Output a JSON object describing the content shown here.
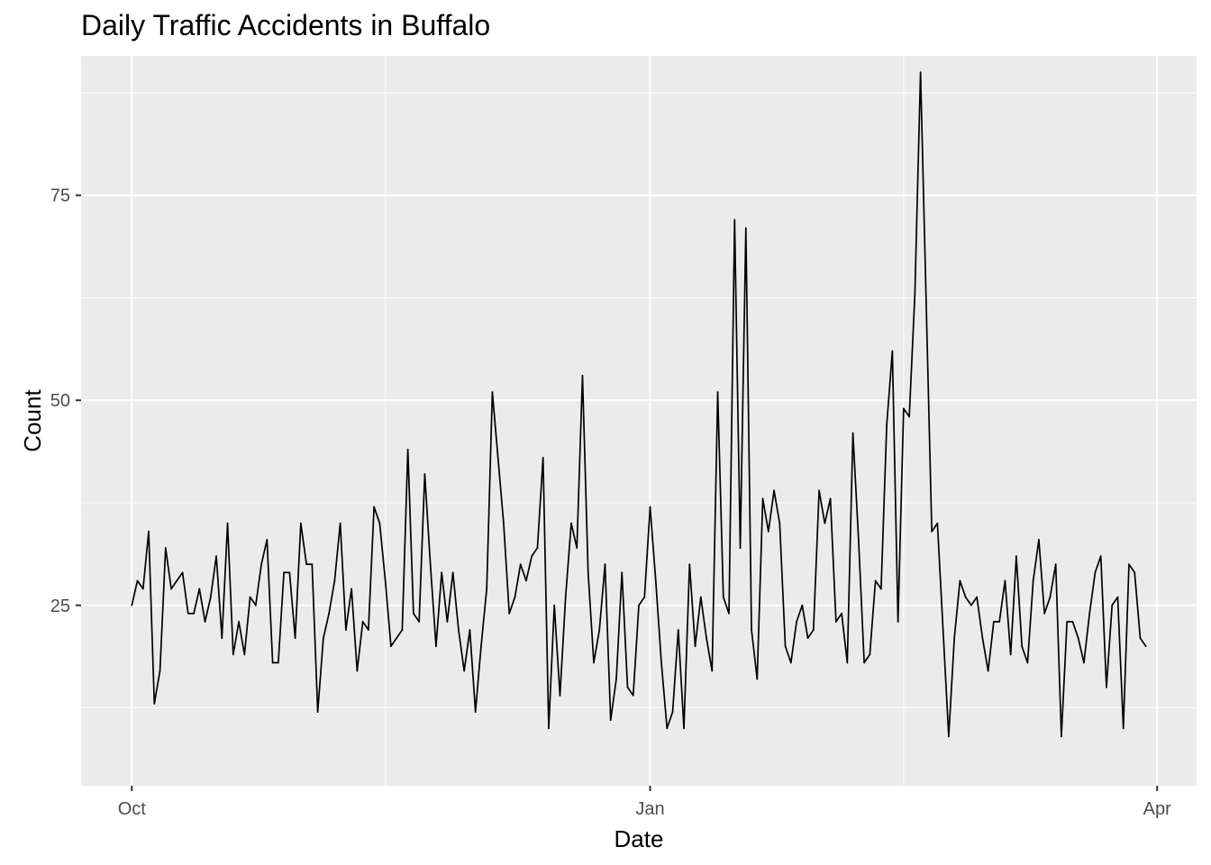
{
  "chart_data": {
    "type": "line",
    "title": "Daily Traffic Accidents in Buffalo",
    "xlabel": "Date",
    "ylabel": "Count",
    "grid": true,
    "x_start": "2014-10-01",
    "x_end": "2015-03-29",
    "xlim": [
      "2014-09-22",
      "2015-04-08"
    ],
    "ylim": [
      3,
      92
    ],
    "x_ticks": [
      {
        "date": "2014-10-01",
        "label": "Oct"
      },
      {
        "date": "2015-01-01",
        "label": "Jan"
      },
      {
        "date": "2015-04-01",
        "label": "Apr"
      }
    ],
    "x_minor_ticks": [
      "2014-11-15",
      "2015-02-15"
    ],
    "y_ticks": [
      25,
      50,
      75
    ],
    "y_minor_ticks": [
      12.5,
      37.5,
      62.5,
      87.5
    ],
    "series": [
      {
        "color": "#000000",
        "values": [
          25,
          28,
          27,
          34,
          13,
          17,
          32,
          27,
          28,
          29,
          24,
          24,
          27,
          23,
          26,
          31,
          21,
          35,
          19,
          23,
          19,
          26,
          25,
          30,
          33,
          18,
          18,
          29,
          29,
          21,
          35,
          30,
          30,
          12,
          21,
          24,
          28,
          35,
          22,
          27,
          17,
          23,
          22,
          37,
          35,
          28,
          20,
          21,
          22,
          44,
          24,
          23,
          41,
          30,
          20,
          29,
          23,
          29,
          22,
          17,
          22,
          12,
          20,
          27,
          51,
          43,
          35,
          24,
          26,
          30,
          28,
          31,
          32,
          43,
          10,
          25,
          14,
          26,
          35,
          32,
          53,
          29,
          18,
          22,
          30,
          11,
          16,
          29,
          15,
          14,
          25,
          26,
          37,
          28,
          18,
          10,
          12,
          22,
          10,
          30,
          20,
          26,
          21,
          17,
          51,
          26,
          24,
          72,
          32,
          71,
          22,
          16,
          38,
          34,
          39,
          35,
          20,
          18,
          23,
          25,
          21,
          22,
          39,
          35,
          38,
          23,
          24,
          18,
          46,
          33,
          18,
          19,
          28,
          27,
          47,
          56,
          23,
          49,
          48,
          63,
          90,
          62,
          34,
          35,
          22,
          9,
          21,
          28,
          26,
          25,
          26,
          21,
          17,
          23,
          23,
          28,
          19,
          31,
          20,
          18,
          28,
          33,
          24,
          26,
          30,
          9,
          23,
          23,
          21,
          18,
          24,
          29,
          31,
          15,
          25,
          26,
          10,
          30,
          29,
          21,
          20
        ]
      }
    ]
  }
}
